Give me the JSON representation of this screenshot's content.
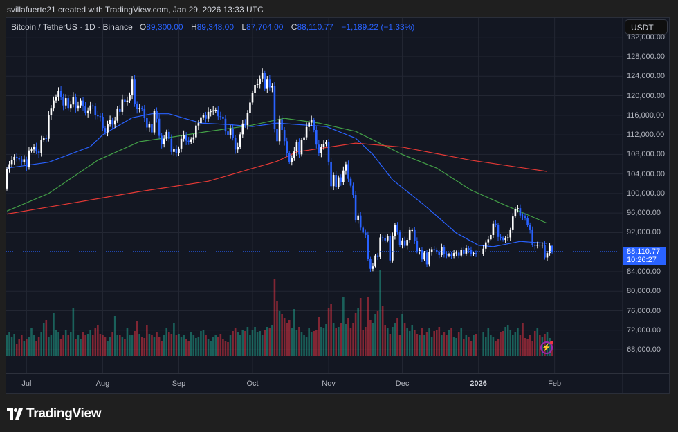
{
  "credit": "svillafuerte21 created with TradingView.com, Jan 29, 2026 13:33 UTC",
  "legend": {
    "symbol": "Bitcoin / TetherUS · 1D · Binance",
    "o_label": "O",
    "o": "89,300.00",
    "h_label": "H",
    "h": "89,348.00",
    "l_label": "L",
    "l": "87,704.00",
    "c_label": "C",
    "c": "88,110.77",
    "change": "−1,189.22 (−1.33%)"
  },
  "currency_button": "USDT",
  "last_price": {
    "price": "88,110.77",
    "countdown": "10:26:27"
  },
  "brand": "TradingView",
  "colors": {
    "background": "#131722",
    "bull_candle": "#ffffff",
    "bear_candle": "#2962ff",
    "volume_up": "#22ab94",
    "volume_down": "#f23645",
    "ma_fast": "#2962ff",
    "ma_mid": "#43a047",
    "ma_slow": "#e53935",
    "accent": "#2962ff"
  },
  "icons": {
    "alert": "lightning-icon",
    "logo": "tradingview-logo-icon"
  },
  "chart_data": {
    "type": "candlestick",
    "timeframe": "1D",
    "y_ticks": [
      "132,000.00",
      "128,000.00",
      "124,000.00",
      "120,000.00",
      "116,000.00",
      "112,000.00",
      "108,000.00",
      "104,000.00",
      "100,000.00",
      "96,000.00",
      "92,000.00",
      "84,000.00",
      "80,000.00",
      "76,000.00",
      "72,000.00",
      "68,000.00"
    ],
    "y_tick_values": [
      132000,
      128000,
      124000,
      120000,
      116000,
      112000,
      108000,
      104000,
      100000,
      96000,
      92000,
      84000,
      80000,
      76000,
      72000,
      68000
    ],
    "x_ticks": [
      {
        "label": "Jul",
        "date": "2025-07-01"
      },
      {
        "label": "Aug",
        "date": "2025-08-01"
      },
      {
        "label": "Sep",
        "date": "2025-09-01"
      },
      {
        "label": "Oct",
        "date": "2025-10-01"
      },
      {
        "label": "Nov",
        "date": "2025-11-01"
      },
      {
        "label": "Dec",
        "date": "2025-12-01"
      },
      {
        "label": "2026",
        "date": "2026-01-01",
        "bold": true
      },
      {
        "label": "Feb",
        "date": "2026-02-01"
      }
    ],
    "last_candle": {
      "date": "2026-01-29",
      "open": 89300,
      "high": 89348,
      "low": 87704,
      "close": 88110.77
    },
    "daily_closes_by_month": {
      "2025-06": [
        105000,
        106000,
        106800,
        107500,
        107200,
        107000,
        106500,
        107000
      ],
      "2025-07": [
        105500,
        108800,
        109000,
        109500,
        108600,
        108200,
        111000,
        111300,
        111200,
        116000,
        117500,
        119000,
        119800,
        121000,
        119800,
        118000,
        119500,
        117500,
        118200,
        119800,
        117500,
        118000,
        119000,
        117800,
        116500,
        117000,
        118000,
        117800,
        116000,
        115800,
        115700
      ],
      "2025-08": [
        113400,
        112500,
        114200,
        115000,
        114100,
        114900,
        117400,
        116700,
        119300,
        118700,
        119000,
        120200,
        123300,
        118300,
        117300,
        117500,
        117400,
        115500,
        113500,
        114200,
        112500,
        116900,
        115300,
        111800,
        110100,
        111200,
        112600,
        111200,
        108500,
        109100,
        108200
      ],
      "2025-09": [
        109200,
        111200,
        112000,
        110800,
        110600,
        111100,
        111500,
        113900,
        114400,
        115600,
        116000,
        115300,
        116700,
        116800,
        117000,
        117100,
        115800,
        115700,
        115300,
        112700,
        112000,
        113300,
        111400,
        109000,
        109600,
        112100,
        114300,
        114000,
        116500,
        118600
      ],
      "2025-10": [
        120600,
        122200,
        122400,
        123500,
        124700,
        121400,
        123300,
        121700,
        122000,
        113200,
        110700,
        115200,
        113000,
        110700,
        108200,
        106500,
        107200,
        108600,
        110500,
        108000,
        111000,
        111500,
        113600,
        114500,
        115100,
        113000,
        110000,
        108300,
        109600,
        110100,
        110500
      ],
      "2025-11": [
        106500,
        101500,
        103800,
        101300,
        103300,
        102300,
        104700,
        106000,
        103000,
        101600,
        99700,
        94600,
        95500,
        93000,
        92000,
        91500,
        86600,
        84600,
        85100,
        87300,
        87000,
        91000,
        90900,
        90400,
        91300,
        86300,
        91300,
        93500,
        92100,
        89400
      ],
      "2025-12": [
        90400,
        89300,
        90500,
        92500,
        92500,
        90300,
        88200,
        88400,
        86500,
        87900,
        85500,
        88000,
        88600,
        88500,
        88000,
        87400,
        89000,
        87600,
        87300,
        87500,
        87200,
        87800,
        87900,
        87300,
        88500,
        87700,
        88800,
        88500,
        87600,
        87800,
        87600
      ],
      "2026-01": [
        88700,
        90000,
        90600,
        91500,
        93800,
        93500,
        91100,
        91000,
        90500,
        90800,
        91000,
        92500,
        95300,
        96800,
        97000,
        95500,
        95300,
        95000,
        93500,
        92500,
        89500,
        89300,
        89500,
        89400,
        89500,
        86900,
        87800,
        89300,
        88110.77
      ]
    },
    "relative_volume_by_month": {
      "2025-06": [
        30,
        35,
        28,
        32,
        18,
        25,
        30,
        22
      ],
      "2025-07": [
        25,
        28,
        40,
        30,
        22,
        28,
        34,
        48,
        52,
        28,
        30,
        62,
        38,
        34,
        25,
        30,
        38,
        30,
        35,
        70,
        25,
        30,
        25,
        34,
        30,
        32,
        38,
        30,
        40,
        45,
        32
      ],
      "2025-08": [
        30,
        28,
        22,
        28,
        34,
        58,
        30,
        30,
        28,
        25,
        40,
        30,
        30,
        36,
        50,
        32,
        28,
        26,
        45,
        32,
        30,
        28,
        34,
        28,
        22,
        30,
        40,
        35,
        32,
        48,
        30
      ],
      "2025-09": [
        32,
        28,
        30,
        25,
        22,
        34,
        30,
        26,
        28,
        36,
        38,
        30,
        25,
        22,
        28,
        30,
        28,
        32,
        24,
        22,
        20,
        30,
        36,
        40,
        34,
        30,
        38,
        36,
        42,
        30
      ],
      "2025-10": [
        38,
        42,
        34,
        36,
        30,
        38,
        42,
        40,
        45,
        112,
        80,
        65,
        60,
        55,
        48,
        52,
        40,
        68,
        38,
        42,
        35,
        30,
        28,
        40,
        34,
        36,
        38,
        56,
        42,
        40,
        46
      ],
      "2025-11": [
        70,
        75,
        48,
        40,
        42,
        48,
        85,
        46,
        55,
        40,
        48,
        62,
        70,
        84,
        38,
        42,
        85,
        52,
        48,
        60,
        65,
        125,
        72,
        45,
        40,
        32,
        42,
        48,
        55,
        30
      ],
      "2025-12": [
        60,
        48,
        40,
        36,
        45,
        38,
        32,
        30,
        40,
        30,
        34,
        40,
        28,
        36,
        38,
        42,
        30,
        34,
        30,
        38,
        40,
        28,
        26,
        34,
        40,
        24,
        30,
        28,
        22,
        30,
        32
      ],
      "2026-01": [
        34,
        28,
        40,
        30,
        28,
        22,
        24,
        34,
        36,
        42,
        45,
        38,
        30,
        35,
        40,
        30,
        48,
        26,
        24,
        30,
        22,
        36,
        40,
        30,
        28,
        32,
        34,
        26,
        22
      ]
    },
    "moving_averages": [
      {
        "color": "#2962ff",
        "points": [
          [
            "2025-06-23",
            105200
          ],
          [
            "2025-07-10",
            106400
          ],
          [
            "2025-07-27",
            109600
          ],
          [
            "2025-08-01",
            112000
          ],
          [
            "2025-08-13",
            115500
          ],
          [
            "2025-08-21",
            116300
          ],
          [
            "2025-08-28",
            116300
          ],
          [
            "2025-09-10",
            114400
          ],
          [
            "2025-09-21",
            114100
          ],
          [
            "2025-10-01",
            113700
          ],
          [
            "2025-10-11",
            114400
          ],
          [
            "2025-10-31",
            113700
          ],
          [
            "2025-11-12",
            111300
          ],
          [
            "2025-11-19",
            108000
          ],
          [
            "2025-11-27",
            102800
          ],
          [
            "2025-12-10",
            97600
          ],
          [
            "2025-12-23",
            91900
          ],
          [
            "2026-01-01",
            89400
          ],
          [
            "2026-01-07",
            89100
          ],
          [
            "2026-01-18",
            90200
          ],
          [
            "2026-01-29",
            89800
          ]
        ]
      },
      {
        "color": "#43a047",
        "points": [
          [
            "2025-06-23",
            96400
          ],
          [
            "2025-07-10",
            100000
          ],
          [
            "2025-07-30",
            106800
          ],
          [
            "2025-08-16",
            110600
          ],
          [
            "2025-08-30",
            111600
          ],
          [
            "2025-09-13",
            112700
          ],
          [
            "2025-09-30",
            113900
          ],
          [
            "2025-10-14",
            115400
          ],
          [
            "2025-10-28",
            114400
          ],
          [
            "2025-11-12",
            112700
          ],
          [
            "2025-12-01",
            108000
          ],
          [
            "2025-12-15",
            105200
          ],
          [
            "2025-12-29",
            100700
          ],
          [
            "2026-01-12",
            97600
          ],
          [
            "2026-01-29",
            93900
          ]
        ]
      },
      {
        "color": "#e53935",
        "points": [
          [
            "2025-06-23",
            95800
          ],
          [
            "2025-07-18",
            97900
          ],
          [
            "2025-08-16",
            100400
          ],
          [
            "2025-09-13",
            102500
          ],
          [
            "2025-10-11",
            106600
          ],
          [
            "2025-10-19",
            108500
          ],
          [
            "2025-11-12",
            110300
          ],
          [
            "2025-12-01",
            109500
          ],
          [
            "2025-12-29",
            106800
          ],
          [
            "2026-01-29",
            104500
          ]
        ]
      }
    ]
  }
}
